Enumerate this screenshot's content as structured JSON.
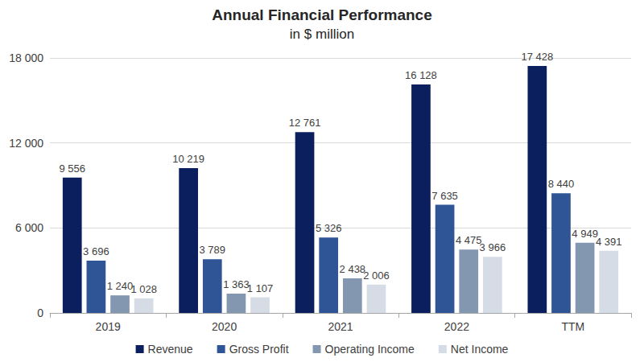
{
  "chart_data": {
    "type": "bar",
    "title": "Annual Financial Performance",
    "subtitle": "in $ million",
    "categories": [
      "2019",
      "2020",
      "2021",
      "2022",
      "TTM"
    ],
    "series": [
      {
        "name": "Revenue",
        "color": "#0b1f5e",
        "values": [
          9556,
          10219,
          12761,
          16128,
          17428
        ],
        "value_labels": [
          "9 556",
          "10 219",
          "12 761",
          "16 128",
          "17 428"
        ]
      },
      {
        "name": "Gross Profit",
        "color": "#2f5597",
        "values": [
          3696,
          3789,
          5326,
          7635,
          8440
        ],
        "value_labels": [
          "3 696",
          "3 789",
          "5 326",
          "7 635",
          "8 440"
        ]
      },
      {
        "name": "Operating Income",
        "color": "#8497b0",
        "values": [
          1240,
          1363,
          2438,
          4475,
          4949
        ],
        "value_labels": [
          "1 240",
          "1 363",
          "2 438",
          "4 475",
          "4 949"
        ]
      },
      {
        "name": "Net Income",
        "color": "#d6dce5",
        "values": [
          1028,
          1107,
          2006,
          3966,
          4391
        ],
        "value_labels": [
          "1 028",
          "1 107",
          "2 006",
          "3 966",
          "4 391"
        ]
      }
    ],
    "ylim": [
      0,
      18000
    ],
    "yticks": [
      0,
      {
        "value": 6000,
        "label": "6 000"
      },
      {
        "value": 12000,
        "label": "12 000"
      },
      {
        "value": 18000,
        "label": "18 000"
      }
    ],
    "grid": true,
    "legend": "bottom",
    "data_labels": true
  }
}
